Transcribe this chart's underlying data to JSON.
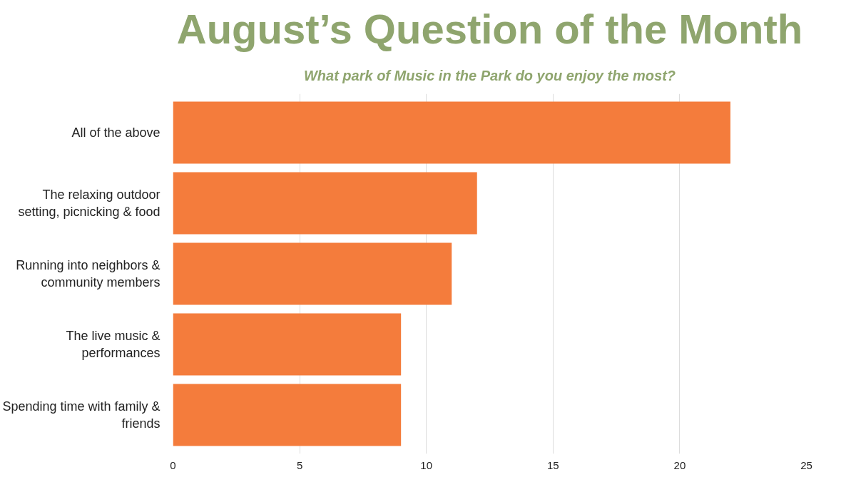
{
  "chart_data": {
    "type": "bar",
    "orientation": "horizontal",
    "title": "August’s Question of the Month",
    "subtitle": "What park of Music in the Park do you enjoy the most?",
    "categories": [
      "All of the above",
      "The relaxing outdoor setting, picnicking & food",
      "Running into neighbors & community members",
      "The live music & performances",
      "Spending time with family & friends"
    ],
    "values": [
      22,
      12,
      11,
      9,
      9
    ],
    "color": "#f47c3c",
    "xlim": [
      0,
      25
    ],
    "xticks": [
      0,
      5,
      10,
      15,
      20,
      25
    ],
    "grid": "x"
  }
}
